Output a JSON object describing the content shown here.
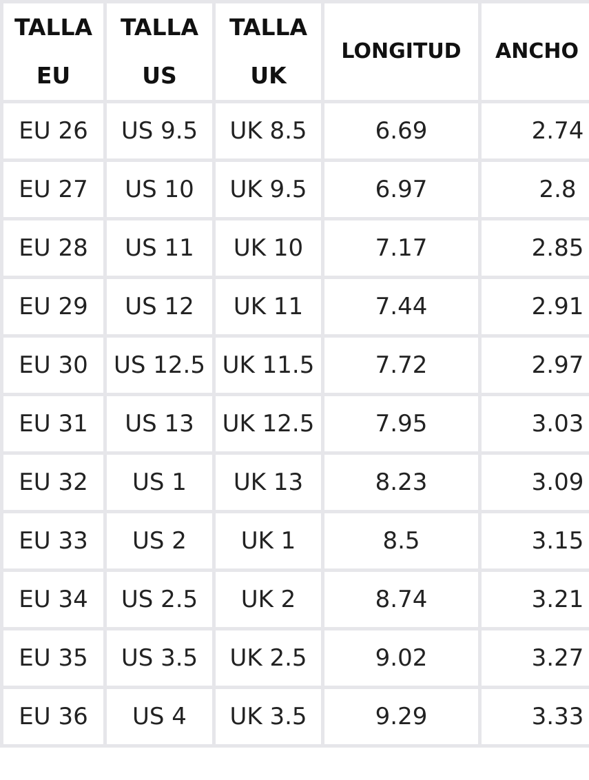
{
  "table": {
    "headers": [
      {
        "lines": [
          "TALLA",
          "EU"
        ]
      },
      {
        "lines": [
          "TALLA",
          "US"
        ]
      },
      {
        "lines": [
          "TALLA",
          "UK"
        ]
      },
      {
        "lines": [
          "LONGITUD"
        ]
      },
      {
        "lines": [
          "ANCHO"
        ]
      }
    ],
    "rows": [
      [
        "EU 26",
        "US 9.5",
        "UK 8.5",
        "6.69",
        "2.74"
      ],
      [
        "EU 27",
        "US 10",
        "UK 9.5",
        "6.97",
        "2.8"
      ],
      [
        "EU 28",
        "US 11",
        "UK 10",
        "7.17",
        "2.85"
      ],
      [
        "EU 29",
        "US 12",
        "UK 11",
        "7.44",
        "2.91"
      ],
      [
        "EU 30",
        "US 12.5",
        "UK 11.5",
        "7.72",
        "2.97"
      ],
      [
        "EU 31",
        "US 13",
        "UK 12.5",
        "7.95",
        "3.03"
      ],
      [
        "EU 32",
        "US 1",
        "UK 13",
        "8.23",
        "3.09"
      ],
      [
        "EU 33",
        "US 2",
        "UK 1",
        "8.5",
        "3.15"
      ],
      [
        "EU 34",
        "US 2.5",
        "UK 2",
        "8.74",
        "3.21"
      ],
      [
        "EU 35",
        "US 3.5",
        "UK 2.5",
        "9.02",
        "3.27"
      ],
      [
        "EU 36",
        "US 4",
        "UK 3.5",
        "9.29",
        "3.33"
      ]
    ]
  }
}
